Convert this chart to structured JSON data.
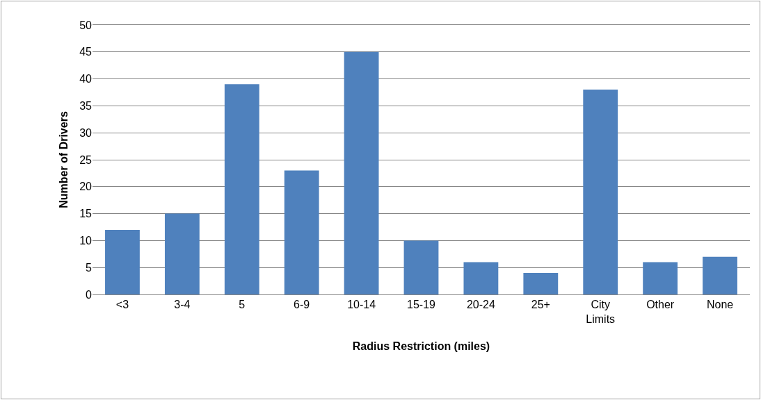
{
  "chart_data": {
    "type": "bar",
    "xlabel": "Radius Restriction (miles)",
    "ylabel": "Number of Drivers",
    "categories": [
      "<3",
      "3-4",
      "5",
      "6-9",
      "10-14",
      "15-19",
      "20-24",
      "25+",
      "City Limits",
      "Other",
      "None"
    ],
    "values": [
      12,
      15,
      39,
      23,
      45,
      10,
      6,
      4,
      38,
      6,
      7
    ],
    "color": "#4f81bd",
    "ylim": [
      0,
      50
    ],
    "yticks": [
      0,
      5,
      10,
      15,
      20,
      25,
      30,
      35,
      40,
      45,
      50
    ],
    "grid": "y"
  }
}
